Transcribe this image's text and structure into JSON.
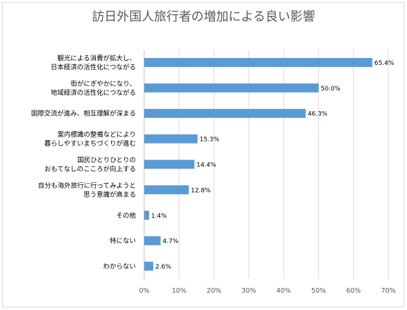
{
  "chart_data": {
    "type": "bar",
    "orientation": "horizontal",
    "title": "訪日外国人旅行者の増加による良い影響",
    "categories": [
      [
        "観光による消費が拡大し、",
        "日本経済の活性化につながる"
      ],
      [
        "街がにぎやかになり、",
        "地域経済の活性化につながる"
      ],
      [
        "国際交流が進み、相互理解が深まる"
      ],
      [
        "案内標識の整備などにより",
        "暮らしやすいまちづくりが進む"
      ],
      [
        "国民ひとりひとりの",
        "おもてなしのこころが向上する"
      ],
      [
        "自分も海外旅行に行ってみようと",
        "思う意識が高まる"
      ],
      [
        "その他"
      ],
      [
        "特にない"
      ],
      [
        "わからない"
      ]
    ],
    "values": [
      65.4,
      50.0,
      46.3,
      15.3,
      14.4,
      12.8,
      1.4,
      4.7,
      2.6
    ],
    "data_labels": [
      "65.4%",
      "50.0%",
      "46.3%",
      "15.3%",
      "14.4%",
      "12.8%",
      "1.4%",
      "4.7%",
      "2.6%"
    ],
    "xlim": [
      0,
      70
    ],
    "x_ticks": [
      0,
      10,
      20,
      30,
      40,
      50,
      60,
      70
    ],
    "x_tick_labels": [
      "0%",
      "10%",
      "20%",
      "30%",
      "40%",
      "50%",
      "60%",
      "70%"
    ],
    "bar_color": "#5b9bd5",
    "grid": true
  }
}
